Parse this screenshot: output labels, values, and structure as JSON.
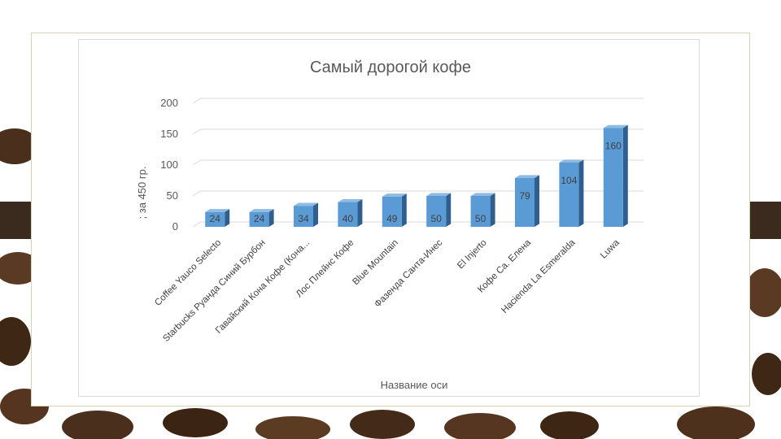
{
  "chart_data": {
    "type": "bar",
    "title": "Самый дорогой кофе",
    "xlabel": "Название оси",
    "ylabel": "; за 450 гр.",
    "categories": [
      "Coffee Yauco Selecto",
      "Starbucks Руанда Синий Бурбон",
      "Гавайский Кона Кофе (Кона...",
      "Лос Плейнс Кофе",
      "Blue Mountain",
      "Фазенда Санта-Инес",
      "El Injerto",
      "Кофе Ca. Елена",
      "Hacienda La Esmeralda",
      "Luwa"
    ],
    "values": [
      24,
      24,
      34,
      40,
      49,
      50,
      50,
      79,
      104,
      160
    ],
    "data_labels": [
      "24",
      "24",
      "34",
      "40",
      "49",
      "50",
      "50",
      "79",
      "104",
      "160"
    ],
    "ylim": [
      0,
      200
    ],
    "yticks": [
      "0",
      "50",
      "100",
      "150",
      "200"
    ],
    "grid": true,
    "legend": "none",
    "colors": {
      "bar_front": "#5b9bd5",
      "bar_side": "#2e5f8e",
      "bar_top": "#8fbbe3",
      "grid": "#d9d9d9"
    }
  }
}
